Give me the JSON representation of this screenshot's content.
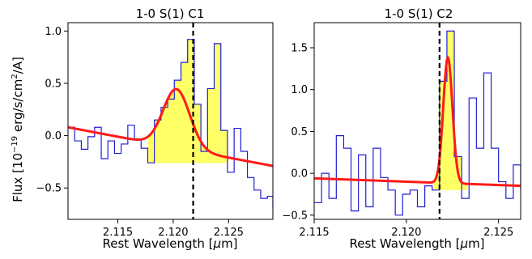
{
  "ylabel_prefix": "Flux [10",
  "ylabel_exp": "−19",
  "ylabel_mid": " erg/s/cm",
  "ylabel_exp2": "2",
  "ylabel_suffix": "/A]",
  "chart_data": [
    {
      "type": "line",
      "title": "1-0 S(1) C1",
      "xlabel_text": "Rest Wavelength [",
      "xlabel_mu": "μ",
      "xlabel_unit": "m]",
      "xlim": [
        2.1105,
        2.129
      ],
      "ylim": [
        -0.8,
        1.08
      ],
      "xticks": [
        2.115,
        2.12,
        2.125
      ],
      "xtick_labels": [
        "2.115",
        "2.120",
        "2.125"
      ],
      "yticks": [
        -0.5,
        0.0,
        0.5,
        1.0
      ],
      "ytick_labels": [
        "−0.5",
        "0.0",
        "0.5",
        "1.0"
      ],
      "vline_x": 2.1218,
      "colors": {
        "spectrum": "#1f1fd6",
        "fit": "#ff1a1a",
        "fill": "#ffff66",
        "vline": "#000000"
      },
      "fill_region": {
        "x_start": 2.1177,
        "x_end": 2.1249,
        "baseline": -0.26
      },
      "spectrum": {
        "x": [
          2.1105,
          2.1111,
          2.1117,
          2.1123,
          2.1129,
          2.1135,
          2.1141,
          2.1147,
          2.1153,
          2.1159,
          2.1165,
          2.1171,
          2.1177,
          2.1183,
          2.1189,
          2.1195,
          2.1201,
          2.1207,
          2.1213,
          2.1219,
          2.1225,
          2.1231,
          2.1237,
          2.1243,
          2.1249,
          2.1255,
          2.1261,
          2.1267,
          2.1273,
          2.1279,
          2.1285,
          2.129
        ],
        "y": [
          0.08,
          -0.05,
          -0.13,
          -0.01,
          0.08,
          -0.22,
          -0.05,
          -0.17,
          -0.08,
          0.1,
          -0.03,
          -0.12,
          -0.26,
          0.15,
          0.27,
          0.35,
          0.53,
          0.7,
          0.92,
          0.3,
          -0.15,
          0.45,
          0.88,
          0.05,
          -0.35,
          0.07,
          -0.15,
          -0.4,
          -0.52,
          -0.6,
          -0.58,
          -0.7
        ]
      },
      "fit": {
        "baseline_a": 0.08,
        "baseline_slope": -20.0,
        "baseline_x0": 2.1105,
        "amplitude": 0.56,
        "center": 2.1203,
        "sigma": 0.0012
      }
    },
    {
      "type": "line",
      "title": "1-0 S(1) C2",
      "xlabel_text": "Rest Wavelength [",
      "xlabel_mu": "μ",
      "xlabel_unit": "m]",
      "xlim": [
        2.115,
        2.1262
      ],
      "ylim": [
        -0.55,
        1.8
      ],
      "xticks": [
        2.115,
        2.12,
        2.125
      ],
      "xtick_labels": [
        "2.115",
        "2.120",
        "2.125"
      ],
      "yticks": [
        -0.5,
        0.0,
        0.5,
        1.0,
        1.5
      ],
      "ytick_labels": [
        "−0.5",
        "0.0",
        "0.5",
        "1.0",
        "1.5"
      ],
      "vline_x": 2.1218,
      "colors": {
        "spectrum": "#1f1fd6",
        "fit": "#ff1a1a",
        "fill": "#ffff66",
        "vline": "#000000"
      },
      "fill_region": {
        "x_start": 2.1215,
        "x_end": 2.1233,
        "baseline": -0.2
      },
      "spectrum": {
        "x": [
          2.115,
          2.1154,
          2.1158,
          2.1162,
          2.1166,
          2.117,
          2.1174,
          2.1178,
          2.1182,
          2.1186,
          2.119,
          2.1194,
          2.1198,
          2.1202,
          2.1206,
          2.121,
          2.1214,
          2.1218,
          2.1222,
          2.1226,
          2.123,
          2.1234,
          2.1238,
          2.1242,
          2.1246,
          2.125,
          2.1254,
          2.1258,
          2.1262
        ],
        "y": [
          -0.35,
          0.0,
          -0.3,
          0.45,
          0.3,
          -0.45,
          0.22,
          -0.4,
          0.3,
          -0.05,
          -0.2,
          -0.5,
          -0.25,
          -0.2,
          -0.4,
          -0.15,
          -0.2,
          1.1,
          1.7,
          0.2,
          -0.3,
          0.9,
          0.3,
          1.2,
          0.3,
          -0.1,
          -0.3,
          0.1,
          -0.2
        ]
      },
      "fit": {
        "baseline_a": -0.06,
        "baseline_slope": -8.0,
        "baseline_x0": 2.115,
        "amplitude": 1.5,
        "center": 2.12225,
        "sigma": 0.00025
      }
    }
  ]
}
